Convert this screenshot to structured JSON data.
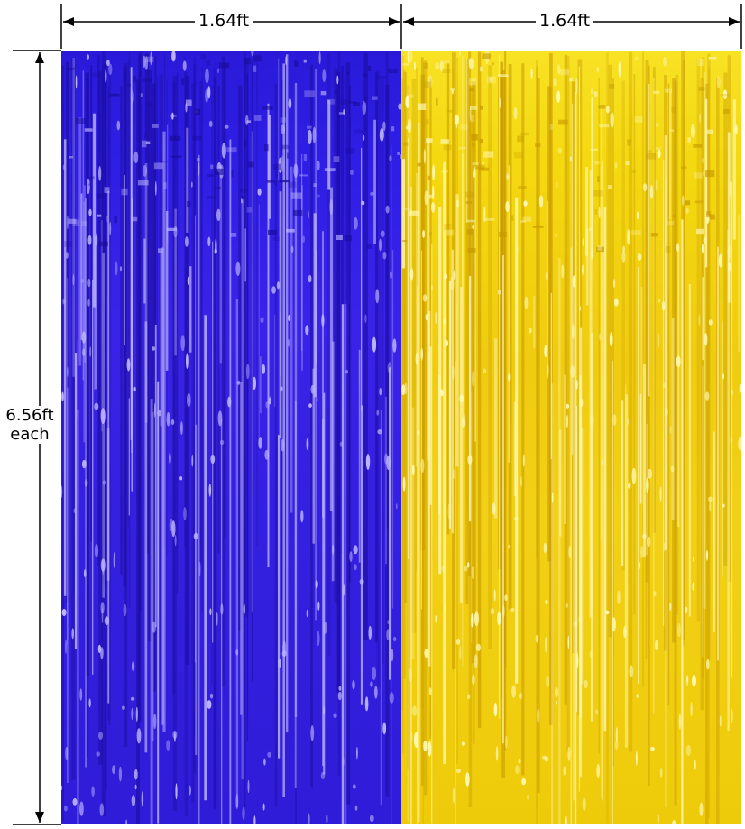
{
  "dimensions": {
    "top_left_width": "1.64ft",
    "top_right_width": "1.64ft",
    "height": "6.56ft",
    "height_qualifier": "each"
  },
  "curtains": [
    {
      "color_name": "blue",
      "base_color": "#2f1ee6",
      "highlight": "#bcb4ff"
    },
    {
      "color_name": "gold",
      "base_color": "#f2d010",
      "highlight": "#fff8b0"
    }
  ]
}
